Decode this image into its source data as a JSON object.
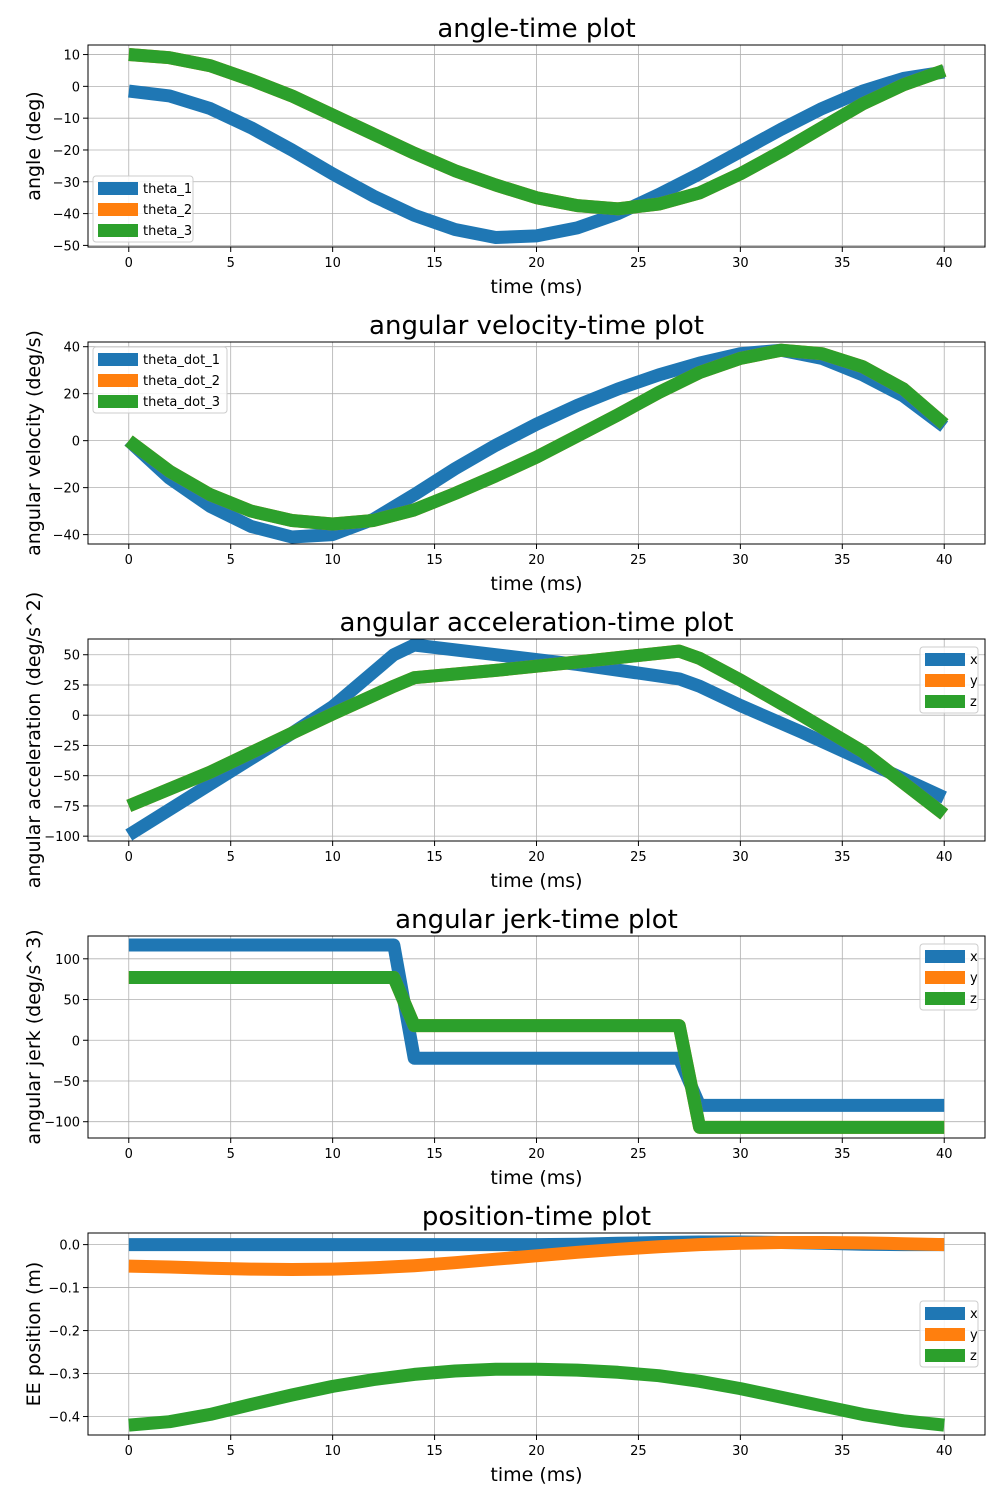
{
  "colors": {
    "x": "#1f77b4",
    "y": "#ff7f0e",
    "z": "#2ca02c",
    "grid": "#b0b0b0"
  },
  "chart_data": [
    {
      "type": "line",
      "title": "angle-time plot",
      "xlabel": "time (ms)",
      "ylabel": "angle (deg)",
      "xlim": [
        -2,
        42
      ],
      "ylim": [
        -50.5,
        13
      ],
      "xticks": [
        0,
        5,
        10,
        15,
        20,
        25,
        30,
        35,
        40
      ],
      "yticks": [
        10,
        0,
        -10,
        -20,
        -30,
        -40,
        -50
      ],
      "grid": true,
      "legend": "lower-left",
      "x": [
        0,
        2,
        4,
        6,
        8,
        10,
        12,
        14,
        16,
        18,
        20,
        22,
        24,
        26,
        28,
        30,
        32,
        34,
        36,
        38,
        40
      ],
      "series": [
        {
          "name": "theta_1",
          "color": "#1f77b4",
          "values": [
            -1.5,
            -3,
            -7,
            -13,
            -20,
            -27.5,
            -34.5,
            -40.5,
            -45,
            -47.5,
            -47,
            -44.5,
            -40,
            -34,
            -27.5,
            -20.5,
            -13.5,
            -7,
            -1.5,
            2.5,
            4.5
          ]
        },
        {
          "name": "theta_2",
          "color": "#ff7f0e",
          "values": [
            10,
            9,
            6.5,
            2,
            -3,
            -9,
            -15,
            -21,
            -26.5,
            -31,
            -35,
            -37.5,
            -38.5,
            -37,
            -33.5,
            -27.5,
            -20.5,
            -13,
            -5.5,
            0.5,
            5
          ]
        },
        {
          "name": "theta_3",
          "color": "#2ca02c",
          "values": [
            10,
            9,
            6.5,
            2,
            -3,
            -9,
            -15,
            -21,
            -26.5,
            -31,
            -35,
            -37.5,
            -38.5,
            -37,
            -33.5,
            -27.5,
            -20.5,
            -13,
            -5.5,
            0.5,
            5
          ]
        }
      ]
    },
    {
      "type": "line",
      "title": "angular velocity-time plot",
      "xlabel": "time (ms)",
      "ylabel": "angular velocity (deg/s)",
      "xlim": [
        -2,
        42
      ],
      "ylim": [
        -44,
        42
      ],
      "xticks": [
        0,
        5,
        10,
        15,
        20,
        25,
        30,
        35,
        40
      ],
      "yticks": [
        40,
        20,
        0,
        -20,
        -40
      ],
      "grid": true,
      "legend": "upper-left",
      "x": [
        0,
        2,
        4,
        6,
        8,
        10,
        12,
        14,
        16,
        18,
        20,
        22,
        24,
        26,
        28,
        30,
        32,
        34,
        36,
        38,
        40
      ],
      "series": [
        {
          "name": "theta_dot_1",
          "color": "#1f77b4",
          "values": [
            0,
            -16,
            -28,
            -36.5,
            -41,
            -40,
            -33.5,
            -23,
            -12,
            -2,
            7,
            15,
            22,
            28,
            33,
            37,
            38.5,
            35,
            28,
            19,
            6
          ]
        },
        {
          "name": "theta_dot_2",
          "color": "#ff7f0e",
          "values": [
            0,
            -13,
            -23,
            -30,
            -34,
            -35.5,
            -34,
            -29.5,
            -22.5,
            -15,
            -7,
            2,
            11,
            20.5,
            29,
            35,
            38.5,
            37,
            31.5,
            22,
            7
          ]
        },
        {
          "name": "theta_dot_3",
          "color": "#2ca02c",
          "values": [
            0,
            -13,
            -23,
            -30,
            -34,
            -35.5,
            -34,
            -29.5,
            -22.5,
            -15,
            -7,
            2,
            11,
            20.5,
            29,
            35,
            38.5,
            37,
            31.5,
            22,
            7
          ]
        }
      ]
    },
    {
      "type": "line",
      "title": "angular acceleration-time plot",
      "xlabel": "time (ms)",
      "ylabel": "angular acceleration (deg/s^2)",
      "xlim": [
        -2,
        42
      ],
      "ylim": [
        -104,
        63
      ],
      "xticks": [
        0,
        5,
        10,
        15,
        20,
        25,
        30,
        35,
        40
      ],
      "yticks": [
        50,
        25,
        0,
        -25,
        -50,
        -75,
        -100
      ],
      "grid": true,
      "legend": "upper-right",
      "series": [
        {
          "name": "x",
          "color": "#1f77b4",
          "x": [
            0,
            4,
            8,
            10,
            13,
            14,
            18,
            22,
            27,
            28,
            30,
            33,
            36,
            40
          ],
          "values": [
            -99,
            -57,
            -15,
            7,
            50,
            58,
            50,
            42,
            30,
            24,
            8,
            -14,
            -37,
            -68
          ]
        },
        {
          "name": "y",
          "color": "#ff7f0e",
          "x": [
            0,
            4,
            8,
            10,
            13,
            14,
            18,
            22,
            27,
            28,
            30,
            33,
            36,
            40
          ],
          "values": [
            -75,
            -47,
            -15,
            1,
            24,
            31,
            37,
            44,
            53,
            47,
            29,
            0,
            -30,
            -82
          ]
        },
        {
          "name": "z",
          "color": "#2ca02c",
          "x": [
            0,
            4,
            8,
            10,
            13,
            14,
            18,
            22,
            27,
            28,
            30,
            33,
            36,
            40
          ],
          "values": [
            -75,
            -47,
            -15,
            1,
            24,
            31,
            37,
            44,
            53,
            47,
            29,
            0,
            -30,
            -82
          ]
        }
      ]
    },
    {
      "type": "line",
      "title": "angular jerk-time plot",
      "xlabel": "time (ms)",
      "ylabel": "angular jerk (deg/s^3)",
      "xlim": [
        -2,
        42
      ],
      "ylim": [
        -120,
        128
      ],
      "xticks": [
        0,
        5,
        10,
        15,
        20,
        25,
        30,
        35,
        40
      ],
      "yticks": [
        100,
        50,
        0,
        -50,
        -100
      ],
      "grid": true,
      "legend": "upper-right",
      "series": [
        {
          "name": "x",
          "color": "#1f77b4",
          "x": [
            0,
            13,
            14,
            27,
            28,
            40
          ],
          "values": [
            117,
            117,
            -22,
            -22,
            -80,
            -80
          ]
        },
        {
          "name": "y",
          "color": "#ff7f0e",
          "x": [
            0,
            13,
            14,
            27,
            28,
            40
          ],
          "values": [
            77,
            77,
            18,
            18,
            -107,
            -107
          ]
        },
        {
          "name": "z",
          "color": "#2ca02c",
          "x": [
            0,
            13,
            14,
            27,
            28,
            40
          ],
          "values": [
            77,
            77,
            18,
            18,
            -107,
            -107
          ]
        }
      ]
    },
    {
      "type": "line",
      "title": "position-time plot",
      "xlabel": "time (ms)",
      "ylabel": "EE position (m)",
      "xlim": [
        -2,
        42
      ],
      "ylim": [
        -0.443,
        0.027
      ],
      "xticks": [
        0,
        5,
        10,
        15,
        20,
        25,
        30,
        35,
        40
      ],
      "yticks": [
        0.0,
        -0.1,
        -0.2,
        -0.3,
        -0.4
      ],
      "ytick_labels": [
        "0.0",
        "−0.1",
        "−0.2",
        "−0.3",
        "−0.4"
      ],
      "grid": true,
      "legend": "center-right",
      "x": [
        0,
        2,
        4,
        6,
        8,
        10,
        12,
        14,
        16,
        18,
        20,
        22,
        24,
        26,
        28,
        30,
        32,
        34,
        36,
        38,
        40
      ],
      "series": [
        {
          "name": "x",
          "color": "#1f77b4",
          "values": [
            0,
            0,
            0,
            0,
            0,
            0,
            0,
            0,
            0,
            0,
            0,
            0.001,
            0.003,
            0.005,
            0.006,
            0.006,
            0.005,
            0.003,
            0.001,
            0,
            0
          ]
        },
        {
          "name": "y",
          "color": "#ff7f0e",
          "values": [
            -0.05,
            -0.052,
            -0.055,
            -0.057,
            -0.058,
            -0.057,
            -0.054,
            -0.049,
            -0.042,
            -0.034,
            -0.026,
            -0.018,
            -0.011,
            -0.005,
            0,
            0.003,
            0.005,
            0.005,
            0.004,
            0.002,
            0
          ]
        },
        {
          "name": "z",
          "color": "#2ca02c",
          "values": [
            -0.42,
            -0.412,
            -0.395,
            -0.372,
            -0.35,
            -0.33,
            -0.314,
            -0.302,
            -0.294,
            -0.29,
            -0.29,
            -0.292,
            -0.297,
            -0.305,
            -0.318,
            -0.335,
            -0.355,
            -0.375,
            -0.395,
            -0.41,
            -0.42
          ]
        }
      ]
    }
  ]
}
